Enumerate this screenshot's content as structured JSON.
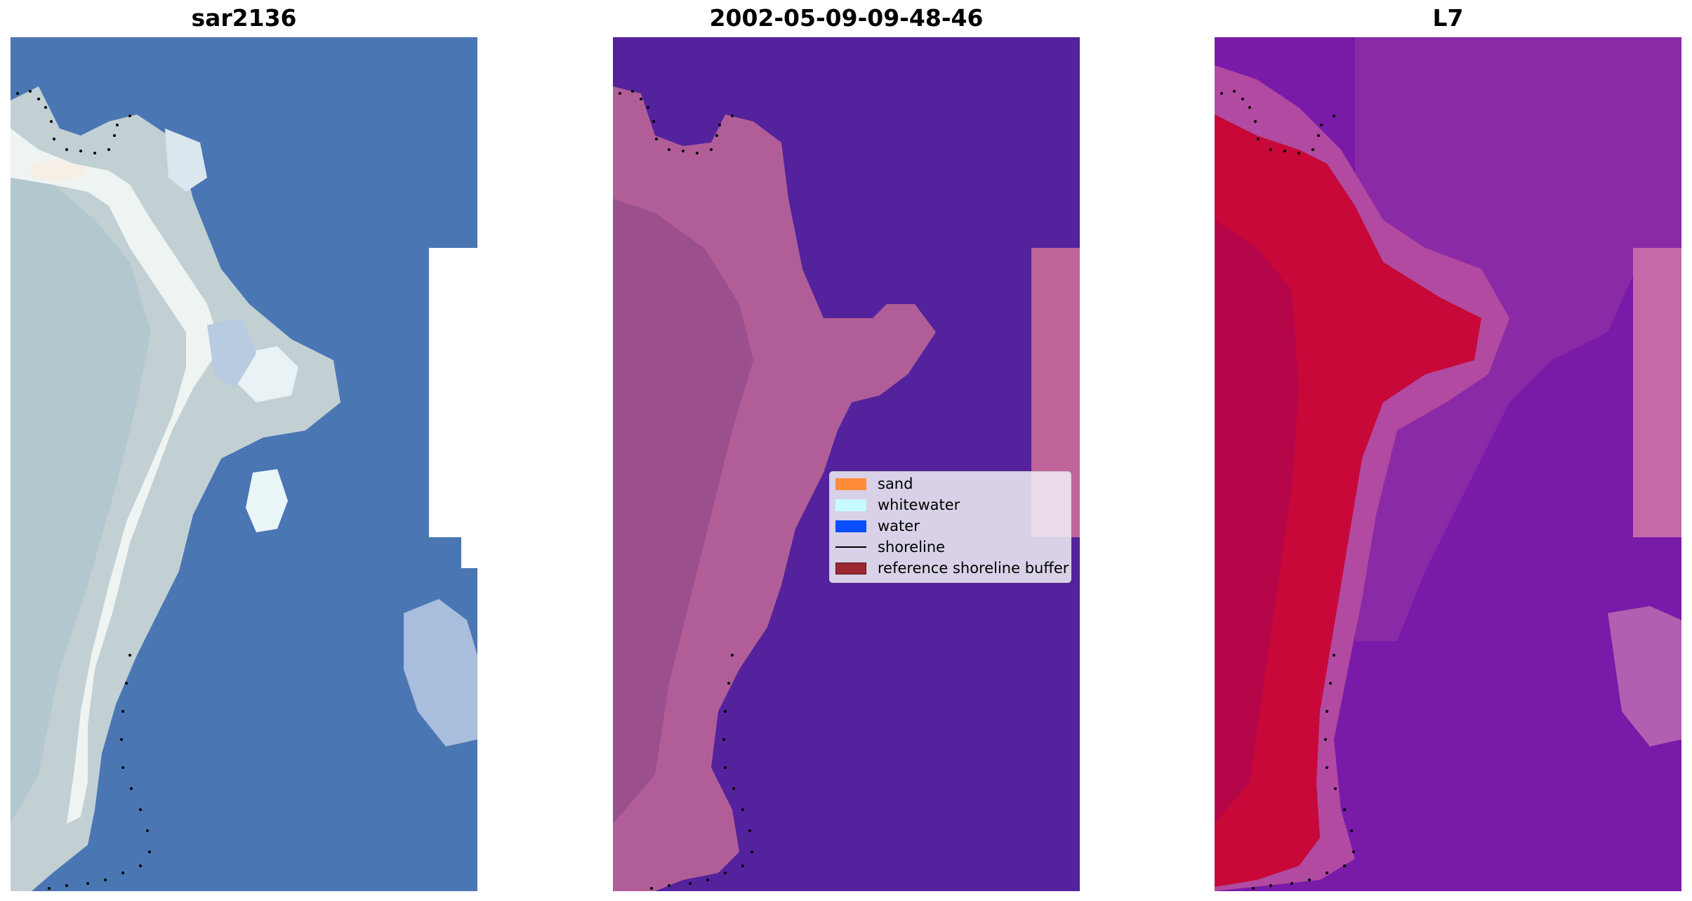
{
  "panels": [
    {
      "title": "sar2136"
    },
    {
      "title": "2002-05-09-09-48-46"
    },
    {
      "title": "L7"
    }
  ],
  "legend": {
    "items": [
      {
        "label": "sand",
        "color": "#ff8c3a",
        "kind": "patch"
      },
      {
        "label": "whitewater",
        "color": "#c8fbff",
        "kind": "patch"
      },
      {
        "label": "water",
        "color": "#0a4fff",
        "kind": "patch"
      },
      {
        "label": "shoreline",
        "color": "#000000",
        "kind": "line"
      },
      {
        "label": "reference shoreline buffer",
        "color": "#9b2833",
        "kind": "patch"
      }
    ]
  },
  "colors": {
    "rgb_water": "#4a77b4",
    "rgb_sand": "#c7d4d6",
    "rgb_whitewater": "#eef6f8",
    "class_background": "#54229c",
    "class_sand": "#b65d96",
    "index_background": "#7a1aa8",
    "index_sand": "#c70838"
  }
}
